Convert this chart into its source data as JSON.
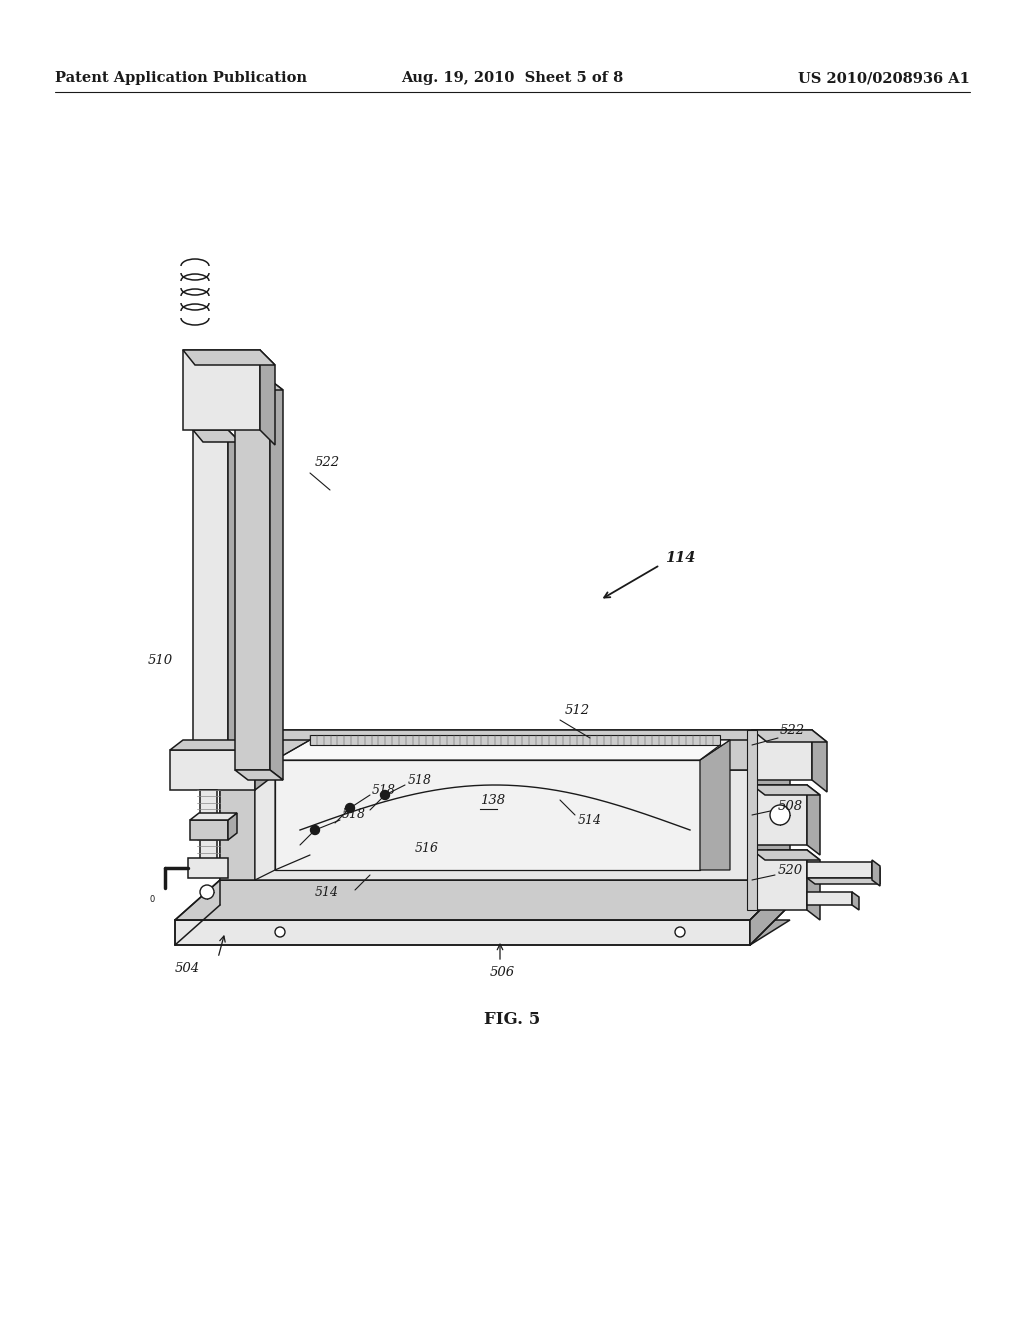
{
  "header_left": "Patent Application Publication",
  "header_center": "Aug. 19, 2010  Sheet 5 of 8",
  "header_right": "US 2010/0208936 A1",
  "figure_label": "FIG. 5",
  "bg_color": "#ffffff",
  "line_color": "#1a1a1a",
  "header_fontsize": 10.5,
  "label_fontsize": 9.5,
  "fig_label_fontsize": 12,
  "gray_light": "#e8e8e8",
  "gray_mid": "#cccccc",
  "gray_dark": "#aaaaaa",
  "gray_fill": "#f2f2f2"
}
